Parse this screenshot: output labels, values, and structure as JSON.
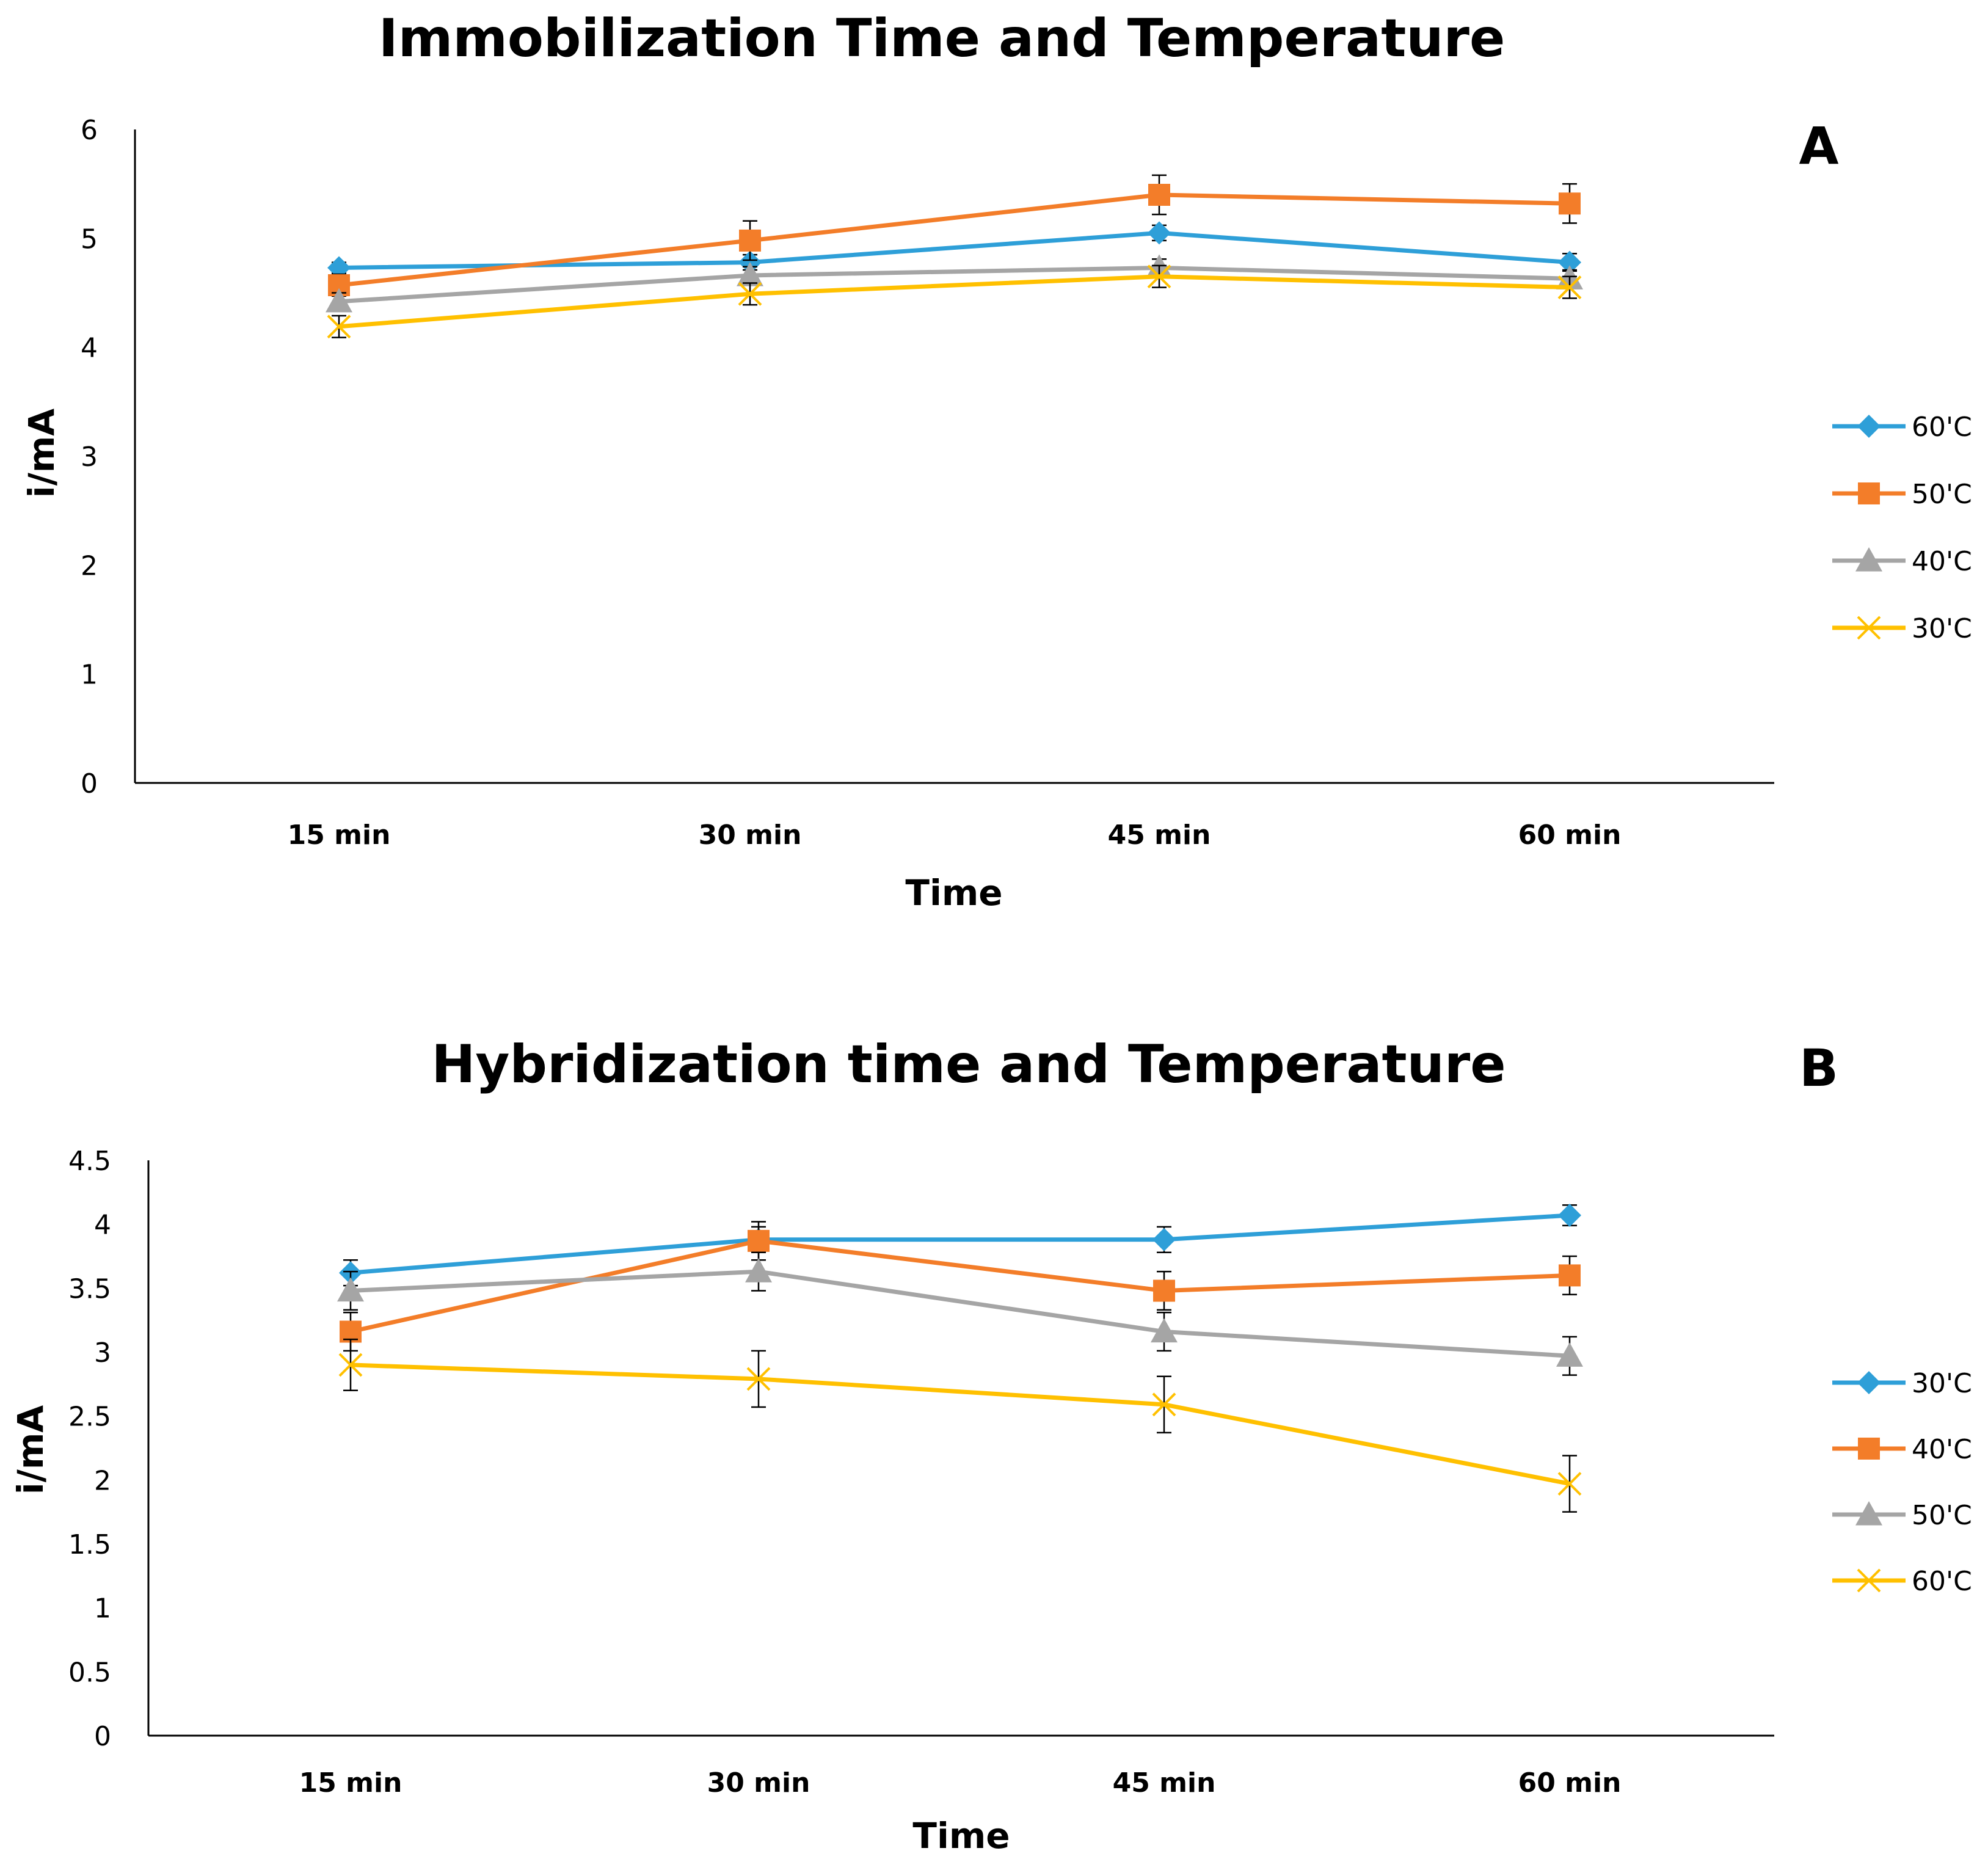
{
  "chart_data": [
    {
      "type": "line",
      "panel": "A",
      "title": "Immobilization Time and Temperature",
      "xlabel": "Time",
      "ylabel": "i/mA",
      "categories": [
        "15 min",
        "30 min",
        "45 min",
        "60 min"
      ],
      "ylim": [
        0,
        6
      ],
      "yticks": [
        "0",
        "1",
        "2",
        "3",
        "4",
        "5",
        "6"
      ],
      "grid": false,
      "legend_position": "right",
      "series": [
        {
          "name": "60'C",
          "color": "#2E9FD8",
          "marker": "diamond",
          "values": [
            4.73,
            4.78,
            5.05,
            4.78
          ],
          "errors": [
            0.05,
            0.07,
            0.07,
            0.08
          ]
        },
        {
          "name": "50'C",
          "color": "#F37D29",
          "marker": "square",
          "values": [
            4.57,
            4.98,
            5.4,
            5.32
          ],
          "errors": [
            0.1,
            0.18,
            0.18,
            0.18
          ]
        },
        {
          "name": "40'C",
          "color": "#A5A5A5",
          "marker": "triangle",
          "values": [
            4.42,
            4.66,
            4.73,
            4.63
          ],
          "errors": [
            0.08,
            0.08,
            0.08,
            0.08
          ]
        },
        {
          "name": "30'C",
          "color": "#FFC000",
          "marker": "x",
          "values": [
            4.19,
            4.49,
            4.65,
            4.55
          ],
          "errors": [
            0.1,
            0.1,
            0.1,
            0.1
          ]
        }
      ]
    },
    {
      "type": "line",
      "panel": "B",
      "title": "Hybridization time and Temperature",
      "xlabel": "Time",
      "ylabel": "i/mA",
      "categories": [
        "15 min",
        "30 min",
        "45 min",
        "60 min"
      ],
      "ylim": [
        0,
        4.5
      ],
      "yticks": [
        "0",
        "0.5",
        "1",
        "1.5",
        "2",
        "2.5",
        "3",
        "3.5",
        "4",
        "4.5"
      ],
      "grid": false,
      "legend_position": "right",
      "series": [
        {
          "name": "30'C",
          "color": "#2E9FD8",
          "marker": "diamond",
          "values": [
            3.62,
            3.88,
            3.88,
            4.07
          ],
          "errors": [
            0.1,
            0.1,
            0.1,
            0.08
          ]
        },
        {
          "name": "40'C",
          "color": "#F37D29",
          "marker": "square",
          "values": [
            3.16,
            3.87,
            3.48,
            3.6
          ],
          "errors": [
            0.15,
            0.15,
            0.15,
            0.15
          ]
        },
        {
          "name": "50'C",
          "color": "#A5A5A5",
          "marker": "triangle",
          "values": [
            3.48,
            3.63,
            3.16,
            2.97
          ],
          "errors": [
            0.15,
            0.15,
            0.15,
            0.15
          ]
        },
        {
          "name": "60'C",
          "color": "#FFC000",
          "marker": "x",
          "values": [
            2.9,
            2.79,
            2.59,
            1.97
          ],
          "errors": [
            0.2,
            0.22,
            0.22,
            0.22
          ]
        }
      ]
    }
  ]
}
